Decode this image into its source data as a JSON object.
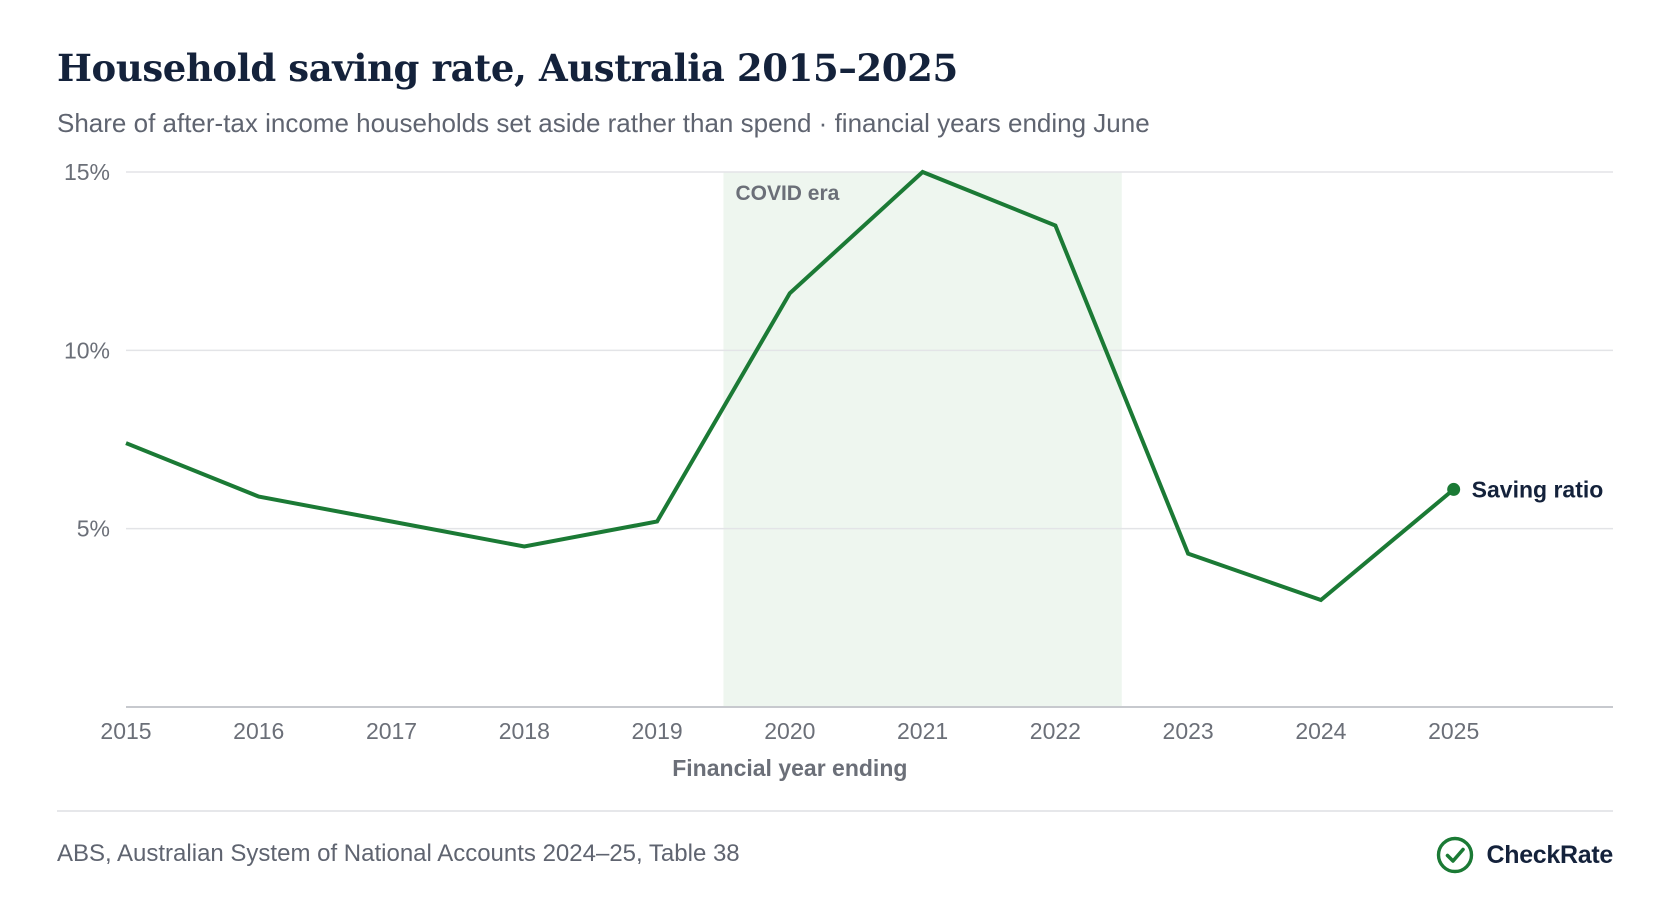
{
  "title": "Household saving rate, Australia 2015–2025",
  "subtitle": "Share of after-tax income households set aside rather than spend · financial years ending June",
  "source": "ABS, Australian System of National Accounts 2024–25, Table 38",
  "brand": {
    "name": "CheckRate",
    "icon": "check-circle-icon",
    "color": "#1b7a35"
  },
  "colors": {
    "line": "#1b7a35",
    "shade": "#eef6ef",
    "grid": "#e3e4e7",
    "axis": "#c7c9ce",
    "tick_text": "#6b6f78",
    "series_label": "#14223b",
    "title": "#14223b"
  },
  "chart_data": {
    "type": "line",
    "x": [
      2015,
      2016,
      2017,
      2018,
      2019,
      2020,
      2021,
      2022,
      2023,
      2024,
      2025
    ],
    "series": [
      {
        "name": "Saving ratio",
        "values": [
          7.4,
          5.9,
          5.2,
          4.5,
          5.2,
          11.6,
          15.0,
          13.5,
          4.3,
          3.0,
          6.1
        ]
      }
    ],
    "xlabel": "Financial year ending",
    "ylabel": "",
    "ylim": [
      0,
      15
    ],
    "xlim": [
      2015,
      2026.2
    ],
    "yticks": [
      5,
      10,
      15
    ],
    "ytick_labels": [
      "5%",
      "10%",
      "15%"
    ],
    "xticks": [
      2015,
      2016,
      2017,
      2018,
      2019,
      2020,
      2021,
      2022,
      2023,
      2024,
      2025
    ],
    "xtick_labels": [
      "2015",
      "2016",
      "2017",
      "2018",
      "2019",
      "2020",
      "2021",
      "2022",
      "2023",
      "2024",
      "2025"
    ],
    "grid": true,
    "legend": "end-of-line label",
    "annotations": [
      {
        "type": "shaded-region",
        "label": "COVID era",
        "x_start": 2019.5,
        "x_end": 2022.5
      }
    ]
  }
}
